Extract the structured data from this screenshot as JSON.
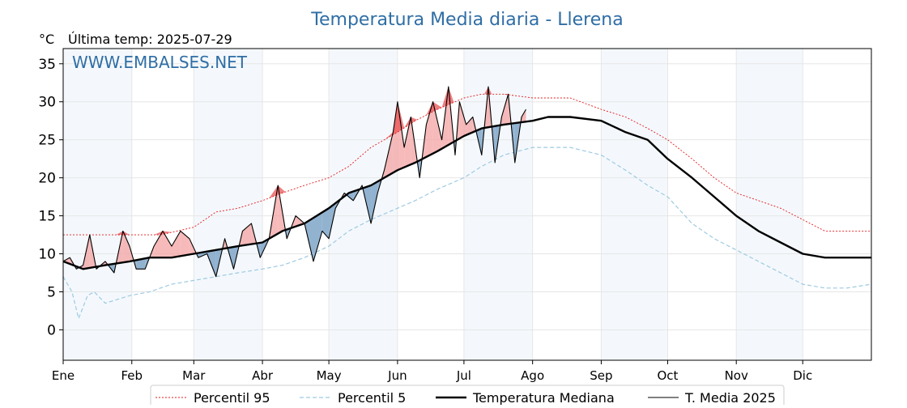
{
  "chart_data": {
    "type": "line",
    "title": "Temperatura Media diaria - Llerena",
    "unit_label": "°C",
    "subtitle": "Última temp: 2025-07-29",
    "watermark": "WWW.EMBALSES.NET",
    "x_domain": [
      1,
      366
    ],
    "ylim": [
      -4,
      37
    ],
    "y_ticks": [
      0,
      5,
      10,
      15,
      20,
      25,
      30,
      35
    ],
    "grid": true,
    "legend_position": "bottom-center",
    "months": [
      {
        "label": "Ene",
        "day": 1
      },
      {
        "label": "Feb",
        "day": 32
      },
      {
        "label": "Mar",
        "day": 60
      },
      {
        "label": "Abr",
        "day": 91
      },
      {
        "label": "May",
        "day": 121
      },
      {
        "label": "Jun",
        "day": 152
      },
      {
        "label": "Jul",
        "day": 182
      },
      {
        "label": "Ago",
        "day": 213
      },
      {
        "label": "Sep",
        "day": 244
      },
      {
        "label": "Oct",
        "day": 274
      },
      {
        "label": "Nov",
        "day": 305
      },
      {
        "label": "Dic",
        "day": 335
      }
    ],
    "series": [
      {
        "name": "Percentil 95",
        "color": "#e31a1c",
        "style": "dotted",
        "x": [
          1,
          15,
          31,
          45,
          60,
          70,
          80,
          91,
          100,
          110,
          121,
          130,
          140,
          152,
          160,
          170,
          182,
          190,
          200,
          213,
          220,
          230,
          244,
          255,
          265,
          274,
          285,
          295,
          305,
          315,
          325,
          335,
          345,
          355,
          366
        ],
        "y": [
          12.5,
          12.5,
          12.5,
          12.5,
          13.5,
          15.5,
          16,
          17,
          18,
          19,
          20,
          21.5,
          24,
          26,
          27.5,
          29,
          30.5,
          31,
          31,
          30.5,
          30.5,
          30.5,
          29,
          28,
          26.5,
          25,
          22.5,
          20,
          18,
          17,
          16,
          14.5,
          13,
          13,
          13
        ]
      },
      {
        "name": "Percentil 5",
        "color": "#9ecae1",
        "style": "dashed",
        "x": [
          1,
          5,
          8,
          12,
          15,
          20,
          31,
          40,
          50,
          60,
          70,
          80,
          91,
          100,
          110,
          121,
          130,
          140,
          152,
          160,
          170,
          182,
          190,
          200,
          213,
          220,
          230,
          244,
          255,
          265,
          274,
          285,
          295,
          305,
          315,
          325,
          335,
          345,
          355,
          366
        ],
        "y": [
          7,
          5,
          1.5,
          4.5,
          5,
          3.5,
          4.5,
          5,
          6,
          6.5,
          7,
          7.5,
          8,
          8.5,
          9.5,
          11,
          13,
          14.5,
          16,
          17,
          18.5,
          20,
          21.5,
          23,
          24,
          24,
          24,
          23,
          21,
          19,
          17.5,
          14,
          12,
          10.5,
          9,
          7.5,
          6,
          5.5,
          5.5,
          6
        ]
      },
      {
        "name": "Temperatura Mediana",
        "color": "#000000",
        "style": "solid-bold",
        "x": [
          1,
          10,
          20,
          31,
          40,
          50,
          60,
          70,
          80,
          91,
          100,
          110,
          121,
          130,
          140,
          152,
          160,
          170,
          182,
          190,
          200,
          213,
          220,
          230,
          244,
          255,
          265,
          274,
          285,
          295,
          305,
          315,
          325,
          335,
          345,
          355,
          366
        ],
        "y": [
          9,
          8,
          8.5,
          9,
          9.5,
          9.5,
          10,
          10.5,
          11,
          11.5,
          13,
          14,
          16,
          18,
          19,
          21,
          22,
          23.5,
          25.5,
          26.5,
          27,
          27.5,
          28,
          28,
          27.5,
          26,
          25,
          22.5,
          20,
          17.5,
          15,
          13,
          11.5,
          10,
          9.5,
          9.5,
          9.5
        ]
      },
      {
        "name": "T. Media 2025",
        "color": "#000000",
        "style": "solid-thin",
        "x": [
          1,
          4,
          7,
          10,
          13,
          16,
          20,
          24,
          28,
          31,
          34,
          38,
          42,
          46,
          50,
          54,
          58,
          62,
          66,
          70,
          74,
          78,
          82,
          86,
          90,
          94,
          98,
          102,
          106,
          110,
          114,
          118,
          121,
          124,
          128,
          132,
          136,
          140,
          143,
          146,
          150,
          152,
          155,
          158,
          162,
          165,
          168,
          172,
          175,
          178,
          180,
          183,
          186,
          190,
          193,
          196,
          199,
          202,
          205,
          208,
          210
        ],
        "y": [
          9,
          9.5,
          8,
          8.5,
          12.5,
          8,
          9,
          7.5,
          13,
          11,
          8,
          8,
          11,
          13,
          11,
          13,
          12,
          9.5,
          10,
          7,
          12,
          8,
          13,
          14,
          9.5,
          12,
          19,
          12,
          15,
          14,
          9,
          13,
          12,
          16,
          18,
          17,
          19,
          14,
          18,
          21,
          26,
          30,
          24,
          28,
          20,
          27,
          30,
          25,
          32,
          23,
          30,
          27,
          28,
          23,
          32,
          22,
          28,
          31,
          22,
          28,
          29
        ]
      }
    ]
  },
  "legend": {
    "items": [
      {
        "label": "Percentil 95"
      },
      {
        "label": "Percentil 5"
      },
      {
        "label": "Temperatura Mediana"
      },
      {
        "label": "T. Media 2025"
      }
    ]
  }
}
